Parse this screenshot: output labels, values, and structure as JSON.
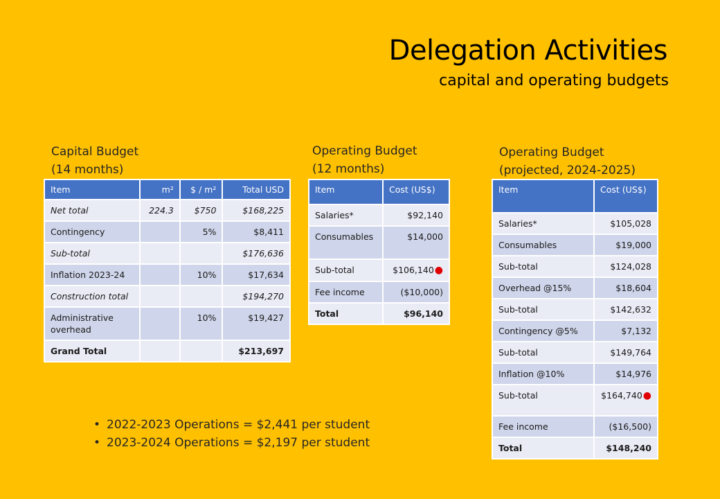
{
  "slide": {
    "title": "Delegation Activities",
    "subtitle": "capital and operating budgets"
  },
  "capital": {
    "caption_line1": "Capital Budget",
    "caption_line2": "(14 months)",
    "headers": [
      "Item",
      "m²",
      "$ / m²",
      "Total USD"
    ],
    "rows": [
      [
        "Net total",
        "224.3",
        "$750",
        "$168,225"
      ],
      [
        "Contingency",
        "",
        "5%",
        "$8,411"
      ],
      [
        "Sub-total",
        "",
        "",
        "$176,636"
      ],
      [
        "Inflation 2023-24",
        "",
        "10%",
        "$17,634"
      ],
      [
        "Construction total",
        "",
        "",
        "$194,270"
      ],
      [
        "Administrative overhead",
        "",
        "10%",
        "$19,427"
      ],
      [
        "Grand Total",
        "",
        "",
        "$213,697"
      ]
    ]
  },
  "operating": {
    "caption_line1": "Operating Budget",
    "caption_line2": "(12 months)",
    "headers": [
      "Item",
      "Cost (US$)"
    ],
    "rows": [
      [
        "Salaries*",
        "$92,140"
      ],
      [
        "Consumables",
        "$14,000"
      ],
      [
        "Sub-total",
        "$106,140"
      ],
      [
        "Fee income",
        "($10,000)"
      ],
      [
        "Total",
        "$96,140"
      ]
    ]
  },
  "projected": {
    "caption_line1": "Operating Budget",
    "caption_line2": "(projected, 2024-2025)",
    "headers": [
      "Item",
      "Cost (US$)"
    ],
    "rows": [
      [
        "Salaries*",
        "$105,028"
      ],
      [
        "Consumables",
        "$19,000"
      ],
      [
        "Sub-total",
        "$124,028"
      ],
      [
        "Overhead @15%",
        "$18,604"
      ],
      [
        "Sub-total",
        "$142,632"
      ],
      [
        "Contingency @5%",
        "$7,132"
      ],
      [
        "Sub-total",
        "$149,764"
      ],
      [
        "Inflation @10%",
        "$14,976"
      ],
      [
        "Sub-total",
        "$164,740"
      ],
      [
        "Fee income",
        "($16,500)"
      ],
      [
        "Total",
        "$148,240"
      ]
    ]
  },
  "notes": [
    "2022-2023 Operations = $2,441 per student",
    "2023-2024 Operations = $2,197 per student"
  ],
  "colors": {
    "background": "#FFC000",
    "header": "#4472C4",
    "row_dark": "#CFD5EA",
    "row_light": "#E9EBF5",
    "marker": "#E00000"
  }
}
